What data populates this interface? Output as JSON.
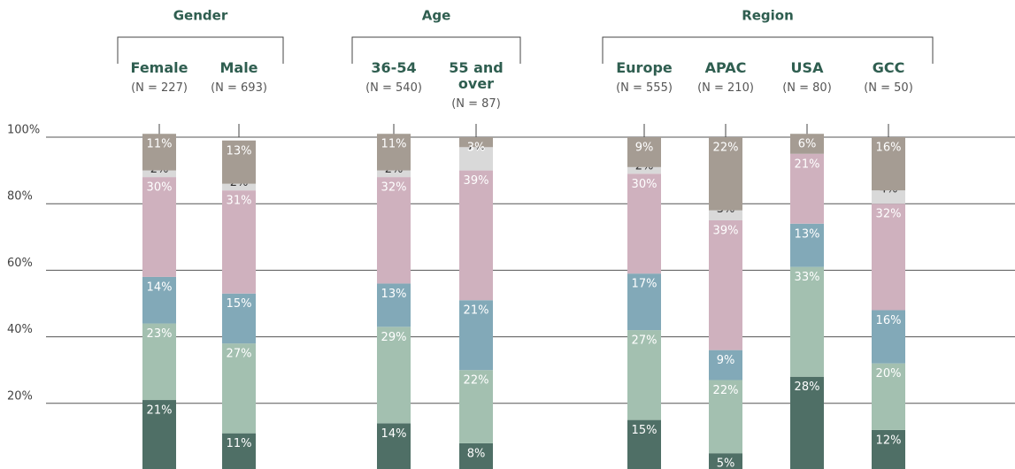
{
  "chart_data": {
    "type": "stacked-bar",
    "groups": [
      {
        "title": "Gender",
        "categories": [
          "Female",
          "Male"
        ],
        "subtitles": [
          "(N = 227)",
          "(N = 693)"
        ]
      },
      {
        "title": "Age",
        "categories": [
          "36-54",
          "55 and over"
        ],
        "subtitles": [
          "(N = 540)",
          "(N = 87)"
        ]
      },
      {
        "title": "Region",
        "categories": [
          "Europe",
          "APAC",
          "USA",
          "GCC"
        ],
        "subtitles": [
          "(N = 555)",
          "(N = 210)",
          "(N = 80)",
          "(N = 50)"
        ]
      }
    ],
    "series": [
      {
        "color": "#4f6f66",
        "values": [
          21,
          11,
          14,
          8,
          15,
          5,
          28,
          12
        ],
        "value_labels": [
          "21%",
          "11%",
          "14%",
          "8%",
          "15%",
          "5%",
          "28%",
          "12%"
        ]
      },
      {
        "color": "#a3c0b0",
        "values": [
          23,
          27,
          29,
          22,
          27,
          22,
          33,
          20
        ],
        "value_labels": [
          "23%",
          "27%",
          "29%",
          "22%",
          "27%",
          "22%",
          "33%",
          "20%"
        ]
      },
      {
        "color": "#82a9b8",
        "values": [
          14,
          15,
          13,
          21,
          17,
          9,
          13,
          16
        ],
        "value_labels": [
          "14%",
          "15%",
          "13%",
          "21%",
          "17%",
          "9%",
          "13%",
          "16%"
        ]
      },
      {
        "color": "#cfb1be",
        "values": [
          30,
          31,
          32,
          39,
          30,
          39,
          21,
          32
        ],
        "value_labels": [
          "30%",
          "31%",
          "32%",
          "39%",
          "30%",
          "39%",
          "21%",
          "32%"
        ]
      },
      {
        "color": "#d9d9d9",
        "values": [
          2,
          2,
          2,
          7,
          2,
          3,
          null,
          4
        ],
        "value_labels": [
          "2%",
          "2%",
          "2%",
          "7%",
          "2%",
          "3%",
          null,
          "4%"
        ]
      },
      {
        "color": "#a59c93",
        "values": [
          11,
          13,
          11,
          3,
          9,
          22,
          6,
          16
        ],
        "value_labels": [
          "11%",
          "13%",
          "11%",
          "3%",
          "9%",
          "22%",
          "6%",
          "16%"
        ]
      }
    ],
    "ylim": [
      0,
      100
    ],
    "yticks": [
      {
        "value": 20,
        "label": "20%"
      },
      {
        "value": 40,
        "label": "40%"
      },
      {
        "value": 60,
        "label": "60%"
      },
      {
        "value": 80,
        "label": "80%"
      },
      {
        "value": 100,
        "label": "100%"
      }
    ],
    "grid": true
  }
}
